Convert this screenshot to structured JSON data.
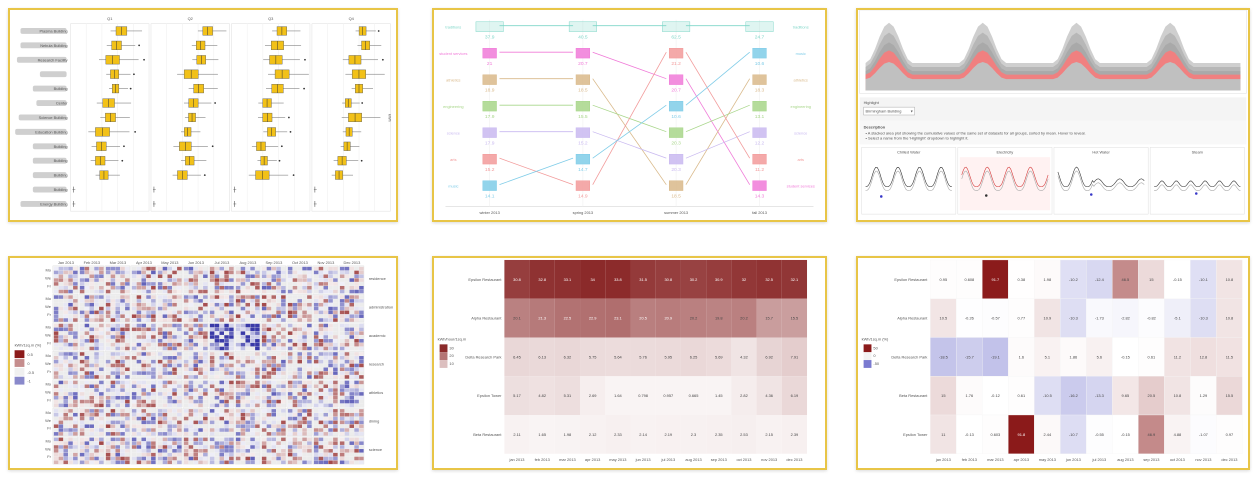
{
  "boxplot": {
    "facets": [
      "Q1",
      "Q2",
      "Q3",
      "Q4"
    ],
    "buildings": [
      {
        "name": "Plasma Building",
        "blurred": true
      },
      {
        "name": "Nebula Building",
        "blurred": true
      },
      {
        "name": "Research Facility",
        "blurred": true
      },
      {
        "name": "",
        "blurred": true
      },
      {
        "name": "Building",
        "blurred": true
      },
      {
        "name": "Center",
        "blurred": true
      },
      {
        "name": "Science Building",
        "blurred": true
      },
      {
        "name": "Education Building",
        "blurred": true
      },
      {
        "name": "Building",
        "blurred": true
      },
      {
        "name": "Building",
        "blurred": true
      },
      {
        "name": "Building",
        "blurred": true
      },
      {
        "name": "Building",
        "blurred": true
      },
      {
        "name": "Energy Building",
        "blurred": true
      }
    ],
    "color": "#f2c118",
    "side_label": "kWh"
  },
  "slope": {
    "seasons": [
      "winter 2013",
      "spring 2013",
      "summer 2013",
      "fall 2013"
    ],
    "rows": [
      {
        "name": "traditions",
        "color": "#7fd6c8",
        "values": [
          "37.9",
          "40.5",
          "62.5",
          "24.7"
        ]
      },
      {
        "name": "student services",
        "color": "#f07ad8",
        "values": [
          "21",
          "20.7",
          "20.7",
          "14.3"
        ]
      },
      {
        "name": "athletics",
        "color": "#d9b98a",
        "values": [
          "18.9",
          "18.5",
          "18.5",
          "18.3"
        ]
      },
      {
        "name": "engineering",
        "color": "#a8d68a",
        "values": [
          "17.9",
          "15.5",
          "20.3",
          "13.1"
        ]
      },
      {
        "name": "science",
        "color": "#c9b9f0",
        "values": [
          "17.9",
          "15.2",
          "20.3",
          "12.2"
        ]
      },
      {
        "name": "arts",
        "color": "#f29a9a",
        "values": [
          "15.2",
          "14.9",
          "21.2",
          "11.2"
        ]
      },
      {
        "name": "music",
        "color": "#7fcce8",
        "values": [
          "14.1",
          "14.7",
          "10.6",
          "10.6"
        ]
      }
    ]
  },
  "area": {
    "highlight_label": "Highlight",
    "select_value": "Birmingham Building",
    "description_title": "Description",
    "description_lines": [
      "A stacked area plot showing the cumulative values of the same set of datasets for all groups, sorted by mean. Hover to reveal.",
      "Select a name from the 'Highlight' dropdown to highlight it."
    ],
    "small_titles": [
      "Chilled Water",
      "Electricity",
      "Hot Water",
      "Steam"
    ],
    "top_color": "#a9a9a9",
    "highlight_color": "#f08080"
  },
  "calendar": {
    "months": [
      "Jan 2013",
      "Feb 2013",
      "Mar 2013",
      "Apr 2013",
      "May 2013",
      "Jun 2013",
      "Jul 2013",
      "Aug 2013",
      "Sep 2013",
      "Oct 2013",
      "Nov 2013",
      "Dec 2013"
    ],
    "rows": [
      "residence",
      "administration",
      "academic",
      "research",
      "athletics",
      "dining",
      "science"
    ],
    "legend_title": "kWh/1sq.m (%)",
    "legend_values": [
      "0.5",
      "0",
      "-0.5",
      "-1"
    ],
    "pos_color": "#8b1a1a",
    "neg_color": "#3a3aa8"
  },
  "heat1": {
    "rows": [
      "Epsilon Restaurant",
      "Alpha Restaurant",
      "Delta Research Park",
      "Epsilon Tower",
      "Beta Restaurant"
    ],
    "cols": [
      "jan 2013",
      "feb 2013",
      "mar 2013",
      "apr 2013",
      "may 2013",
      "jun 2013",
      "jul 2013",
      "aug 2013",
      "sep 2013",
      "oct 2013",
      "nov 2013",
      "dec 2013"
    ],
    "values": [
      [
        "30.8",
        "32.8",
        "33.1",
        "34",
        "33.8",
        "31.5",
        "30.8",
        "30.2",
        "30.9",
        "32",
        "32.5",
        "32.1"
      ],
      [
        "20.1",
        "21.3",
        "22.5",
        "22.9",
        "23.1",
        "20.5",
        "20.9",
        "20.2",
        "19.8",
        "20.2",
        "15.7",
        "15.5"
      ],
      [
        "6.45",
        "6.13",
        "6.32",
        "5.75",
        "5.64",
        "5.76",
        "5.95",
        "6.25",
        "5.69",
        "4.32",
        "6.92",
        "7.91"
      ],
      [
        "5.17",
        "4.82",
        "5.31",
        "2.69",
        "1.64",
        "0.798",
        "0.957",
        "0.665",
        "1.45",
        "2.82",
        "4.36",
        "6.19"
      ],
      [
        "2.11",
        "1.65",
        "1.98",
        "2.12",
        "2.33",
        "2.14",
        "2.19",
        "2.3",
        "2.35",
        "2.53",
        "2.15",
        "2.39"
      ]
    ],
    "legend_title": "kWh/hour/1sq.m",
    "legend_values": [
      "30",
      "20",
      "10"
    ],
    "color": "#8b2a2a"
  },
  "heat2": {
    "rows": [
      "Epsilon Restaurant",
      "Alpha Restaurant",
      "Delta Research Park",
      "Beta Restaurant",
      "Epsilon Tower"
    ],
    "cols": [
      "jan 2013",
      "feb 2013",
      "mar 2013",
      "apr 2013",
      "may 2013",
      "jun 2013",
      "jul 2013",
      "aug 2013",
      "sep 2013",
      "oct 2013",
      "nov 2013",
      "dec 2013"
    ],
    "values": [
      [
        "0.95",
        "0.608",
        "91.7",
        "0.38",
        "1.98",
        "-10.2",
        "-12.4",
        "46.5",
        "15",
        "-0.15",
        "-10.1",
        "10.8"
      ],
      [
        "10.5",
        "-0.26",
        "-0.57",
        "0.77",
        "10.9",
        "-10.3",
        "-1.73",
        "-2.82",
        "-0.82",
        "-5.1",
        "-10.3",
        "10.8"
      ],
      [
        "-18.5",
        "-15.7",
        "-19.1",
        "1.6",
        "5.1",
        "1.86",
        "5.6",
        "-0.15",
        "0.61",
        "11.2",
        "12.8",
        "11.5"
      ],
      [
        "15",
        "1.76",
        "-0.12",
        "0.61",
        "-10.5",
        "-16.2",
        "-13.3",
        "9.65",
        "20.5",
        "10.8",
        "1.29",
        "15.5"
      ],
      [
        "11",
        "-0.13",
        "0.603",
        "91.8",
        "2.44",
        "-10.7",
        "-0.55",
        "-0.15",
        "46.9",
        "4.88",
        "-1.07",
        "0.97"
      ]
    ],
    "legend_title": "kWh/1sq.m (%)",
    "legend_values": [
      "50",
      "0",
      "-50"
    ],
    "pos_color": "#8b1a1a",
    "neg_color": "#7a7ad0"
  }
}
